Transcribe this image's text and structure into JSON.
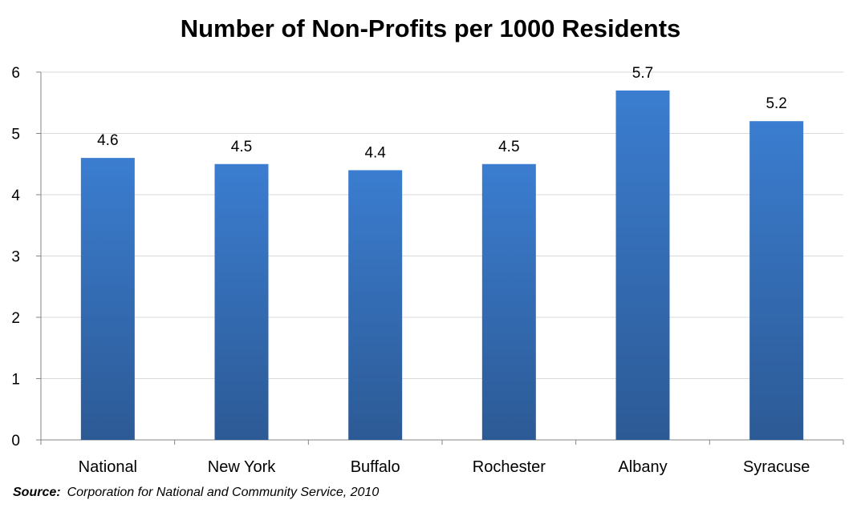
{
  "chart_data": {
    "type": "bar",
    "title": "Number of Non-Profits per 1000 Residents",
    "categories": [
      "National",
      "New York",
      "Buffalo",
      "Rochester",
      "Albany",
      "Syracuse"
    ],
    "values": [
      4.6,
      4.5,
      4.4,
      4.5,
      5.7,
      5.2
    ],
    "data_labels": [
      "4.6",
      "4.5",
      "4.4",
      "4.5",
      "5.7",
      "5.2"
    ],
    "ylim": [
      0,
      6
    ],
    "yticks": [
      0,
      1,
      2,
      3,
      4,
      5,
      6
    ],
    "xlabel": "",
    "ylabel": "",
    "grid": true,
    "bar_color_top": "#3B7DD0",
    "bar_color_bottom": "#2C5A95"
  },
  "source": {
    "label": "Source:",
    "text": "Corporation for National and Community Service, 2010"
  }
}
